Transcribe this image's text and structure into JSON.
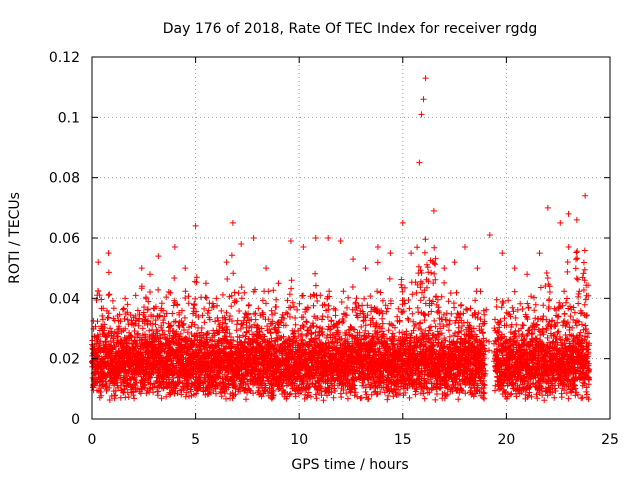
{
  "chart_data": {
    "type": "scatter",
    "title": "Day 176 of 2018, Rate Of TEC Index for receiver rgdg",
    "xlabel": "GPS time / hours",
    "ylabel": "ROTI / TECUs",
    "xlim": [
      0,
      25
    ],
    "ylim": [
      0,
      0.12
    ],
    "xticks": [
      0,
      5,
      10,
      15,
      20,
      25
    ],
    "xtick_labels": [
      "0",
      "5",
      "10",
      "15",
      "20",
      "25"
    ],
    "yticks": [
      0,
      0.02,
      0.04,
      0.06,
      0.08,
      0.1,
      0.12
    ],
    "ytick_labels": [
      "0",
      "0.02",
      "0.04",
      "0.06",
      "0.08",
      "0.1",
      "0.12"
    ],
    "grid": true,
    "marker": "+",
    "color": "#ff0000",
    "series": [
      {
        "name": "ROTI",
        "note": "dense scatter, approx. one point per 30 s over 0-24 h; typical values 0.005-0.05 TECU",
        "x": [
          0.1,
          0.3,
          0.5,
          0.8,
          1.2,
          1.6,
          2.0,
          2.4,
          2.8,
          3.2,
          3.6,
          4.0,
          4.5,
          5.0,
          5.5,
          6.0,
          6.5,
          6.8,
          7.2,
          7.8,
          8.4,
          9.0,
          9.6,
          10.2,
          10.8,
          11.4,
          12.0,
          12.6,
          13.2,
          13.8,
          14.4,
          15.0,
          15.4,
          15.8,
          15.9,
          16.0,
          16.1,
          16.5,
          17.0,
          17.5,
          18.0,
          18.6,
          19.2,
          19.8,
          20.4,
          21.0,
          21.6,
          22.0,
          22.6,
          23.0,
          23.4,
          23.8
        ],
        "y": [
          0.015,
          0.052,
          0.03,
          0.055,
          0.02,
          0.04,
          0.025,
          0.05,
          0.048,
          0.054,
          0.035,
          0.057,
          0.05,
          0.064,
          0.045,
          0.04,
          0.052,
          0.065,
          0.058,
          0.06,
          0.05,
          0.045,
          0.059,
          0.057,
          0.06,
          0.06,
          0.059,
          0.053,
          0.05,
          0.057,
          0.055,
          0.065,
          0.055,
          0.085,
          0.101,
          0.106,
          0.113,
          0.069,
          0.05,
          0.052,
          0.057,
          0.05,
          0.061,
          0.055,
          0.05,
          0.048,
          0.055,
          0.07,
          0.065,
          0.068,
          0.066,
          0.074
        ]
      }
    ]
  }
}
